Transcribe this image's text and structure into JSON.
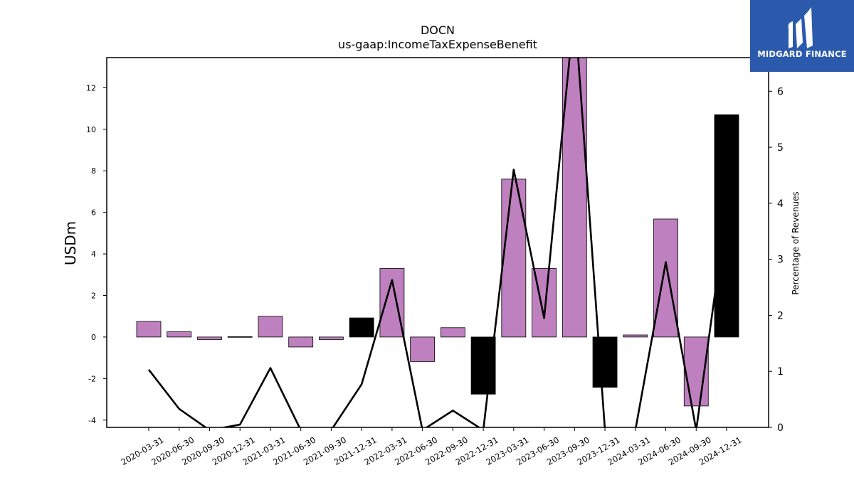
{
  "logo": {
    "text": "MIDGARD FINANCE"
  },
  "chart_data": {
    "type": "bar",
    "title": "DOCN",
    "subtitle": "us-gaap:IncomeTaxExpenseBenefit",
    "ylabel": "USDm",
    "y2label": "Percentage of Revenues",
    "ylim": [
      -4.35,
      13.45
    ],
    "y2lim": [
      0,
      6.6
    ],
    "yticks": [
      -4,
      -2,
      0,
      2,
      4,
      6,
      8,
      10,
      12
    ],
    "y2ticks": [
      0,
      1,
      2,
      3,
      4,
      5,
      6
    ],
    "colors": {
      "bar_default": "#bf80bf",
      "bar_highlight": "#000000",
      "line": "#000000"
    },
    "categories": [
      "2020-03-31",
      "2020-06-30",
      "2020-09-30",
      "2020-12-31",
      "2021-03-31",
      "2021-06-30",
      "2021-09-30",
      "2021-12-31",
      "2022-03-31",
      "2022-06-30",
      "2022-09-30",
      "2022-12-31",
      "2023-03-31",
      "2023-06-30",
      "2023-09-30",
      "2023-12-31",
      "2024-03-31",
      "2024-06-30",
      "2024-09-30",
      "2024-12-31"
    ],
    "series": [
      {
        "type": "bar",
        "values": [
          0.75,
          0.25,
          -0.12,
          0.02,
          1.0,
          -0.48,
          -0.12,
          0.92,
          3.3,
          -1.18,
          0.45,
          -2.75,
          7.6,
          3.3,
          13.6,
          -2.42,
          0.1,
          5.68,
          -3.32,
          10.7
        ],
        "highlight": [
          false,
          false,
          false,
          false,
          false,
          false,
          false,
          true,
          false,
          false,
          false,
          true,
          false,
          false,
          false,
          true,
          false,
          false,
          false,
          true
        ]
      },
      {
        "type": "line",
        "axis": "right",
        "values": [
          1.03,
          0.33,
          -0.05,
          0.05,
          1.06,
          -0.05,
          -0.05,
          0.77,
          2.63,
          -0.05,
          0.3,
          -0.05,
          4.6,
          1.95,
          7.5,
          -0.05,
          -0.05,
          2.95,
          -0.05,
          3.9
        ]
      }
    ]
  }
}
